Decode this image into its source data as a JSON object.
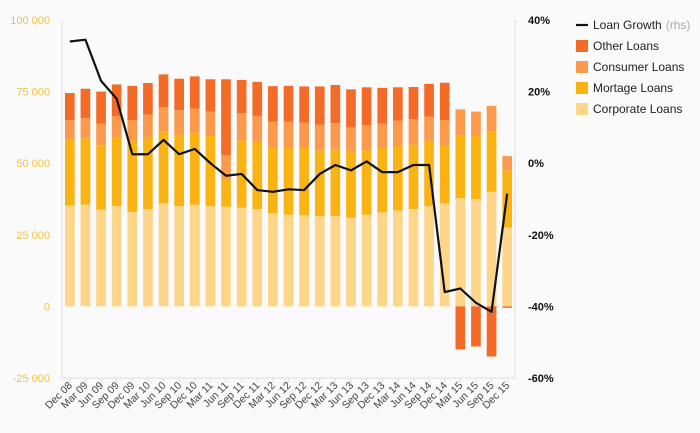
{
  "chart_data": {
    "type": "bar",
    "subtype": "stacked-bar-with-line",
    "title": "",
    "xlabel": "",
    "ylabel": "",
    "categories": [
      "Dec 08",
      "Mar 09",
      "Jun 09",
      "Sep 09",
      "Dec 09",
      "Mar 10",
      "Jun 10",
      "Sep 10",
      "Dec 10",
      "Mar 11",
      "Jun 11",
      "Sep 11",
      "Dec 11",
      "Mar 12",
      "Jun 12",
      "Sep 12",
      "Dec 12",
      "Mar 13",
      "Jun 13",
      "Sep 13",
      "Dec 13",
      "Mar 14",
      "Jun 14",
      "Sep 14",
      "Dec 14",
      "Mar 15",
      "Jun 15",
      "Sep 15",
      "Dec 15"
    ],
    "ylim_left": [
      -25000,
      100000
    ],
    "yticks_left": [
      -25000,
      0,
      25000,
      50000,
      75000,
      100000
    ],
    "ytick_labels_left": [
      "-25 000",
      "0",
      "25 000",
      "50 000",
      "75 000",
      "100 000"
    ],
    "ylim_right": [
      -60,
      40
    ],
    "yticks_right": [
      -60,
      -40,
      -20,
      0,
      20,
      40
    ],
    "ytick_labels_right": [
      "-60%",
      "-40%",
      "-20%",
      "0%",
      "20%",
      "40%"
    ],
    "series": [
      {
        "name": "Corporate Loans",
        "color": "#fdd68a",
        "axis": "left",
        "kind": "bar",
        "values": [
          35200,
          35500,
          33800,
          35000,
          33000,
          34000,
          36000,
          35000,
          35500,
          35000,
          34800,
          34500,
          34000,
          32500,
          32000,
          31800,
          31500,
          31500,
          31000,
          32000,
          32800,
          33500,
          34000,
          35000,
          36000,
          37800,
          37500,
          40000,
          27500
        ]
      },
      {
        "name": "Mortage Loans",
        "color": "#f9b414",
        "axis": "left",
        "kind": "bar",
        "values": [
          23000,
          23200,
          22500,
          24000,
          24500,
          25000,
          25000,
          25000,
          25000,
          24500,
          9500,
          23500,
          23500,
          23000,
          23500,
          23500,
          23000,
          23500,
          23000,
          22500,
          22500,
          22500,
          22500,
          22500,
          20000,
          22000,
          22000,
          21000,
          20000
        ]
      },
      {
        "name": "Consumer Loans",
        "color": "#fb9a4c",
        "axis": "left",
        "kind": "bar",
        "values": [
          6800,
          7000,
          7500,
          7500,
          7500,
          8000,
          8500,
          8500,
          8500,
          8500,
          8500,
          9500,
          9000,
          9000,
          9000,
          8800,
          9000,
          9000,
          8500,
          8800,
          8500,
          8800,
          8800,
          8800,
          9000,
          9000,
          8500,
          9000,
          5000
        ]
      },
      {
        "name": "Other Loans",
        "color": "#f36b27",
        "axis": "left",
        "kind": "bar",
        "values": [
          9500,
          10300,
          11200,
          11000,
          12000,
          11000,
          11500,
          11000,
          11300,
          11300,
          26500,
          11600,
          11900,
          12400,
          12500,
          12700,
          13300,
          13300,
          13300,
          13200,
          12500,
          11700,
          11300,
          11400,
          13100,
          -15000,
          -14000,
          -17500,
          -500
        ]
      },
      {
        "name": "Loan Growth",
        "name_suffix": "(rhs)",
        "color": "#111111",
        "axis": "right",
        "kind": "line",
        "values": [
          34,
          34.5,
          23,
          18,
          2.5,
          2.5,
          6.5,
          2.5,
          4,
          0,
          -3.5,
          -3,
          -7.5,
          -8,
          -7.3,
          -7.5,
          -3,
          -0.5,
          -2,
          0.5,
          -2.5,
          -2.5,
          -0.5,
          -0.5,
          -36,
          -35,
          -39,
          -41.5,
          -8.5
        ]
      }
    ],
    "legend": {
      "position": "top-right",
      "order": [
        "Loan Growth",
        "Other Loans",
        "Consumer Loans",
        "Mortage Loans",
        "Corporate Loans"
      ]
    },
    "grid": false
  }
}
